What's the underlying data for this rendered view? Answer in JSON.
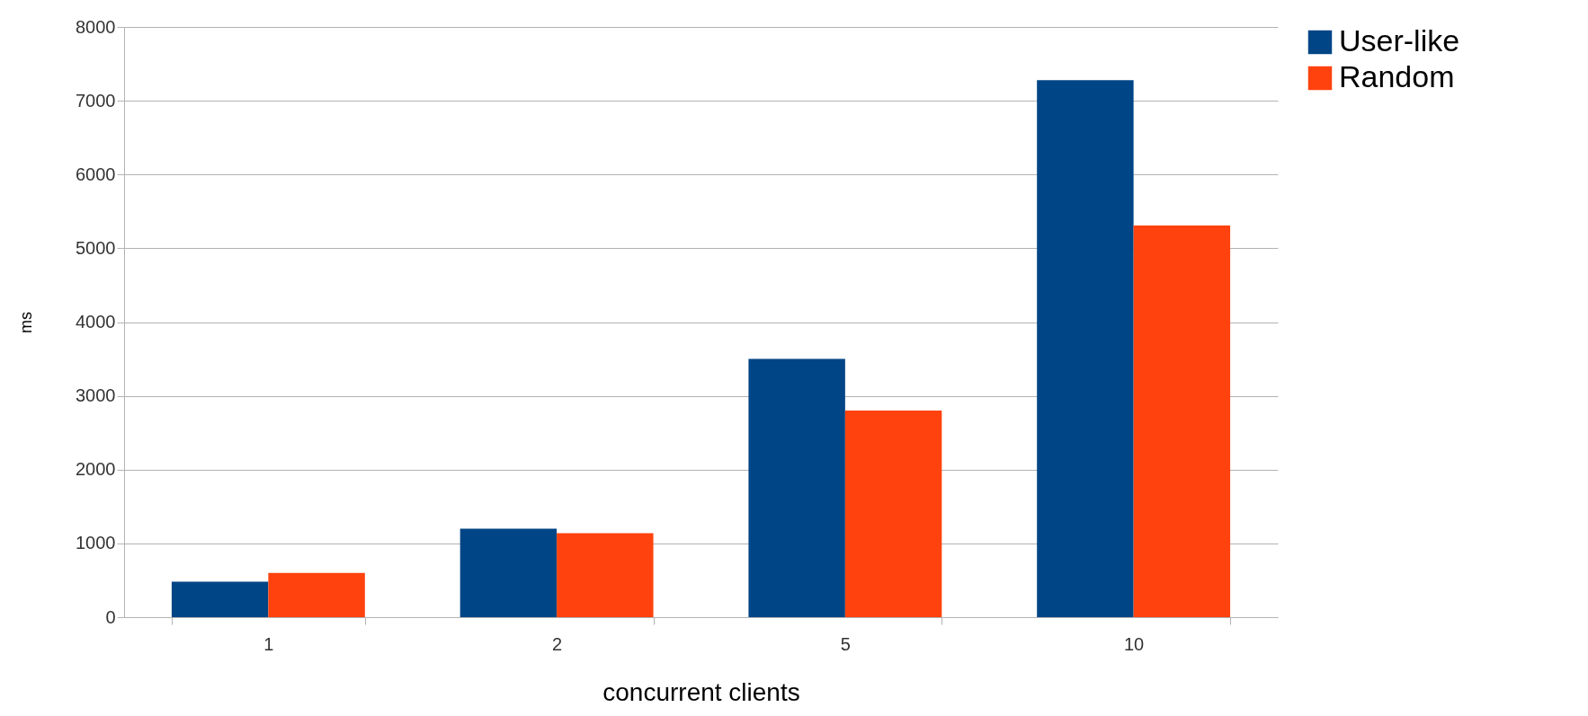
{
  "chart_data": {
    "type": "bar",
    "xlabel": "concurrent clients",
    "ylabel": "ms",
    "categories": [
      "1",
      "2",
      "5",
      "10"
    ],
    "series": [
      {
        "name": "User-like",
        "color": "#004586",
        "values": [
          480,
          1200,
          3500,
          7280
        ]
      },
      {
        "name": "Random",
        "color": "#ff420e",
        "values": [
          600,
          1140,
          2800,
          5310
        ]
      }
    ],
    "ylim": [
      0,
      8000
    ],
    "yticks": [
      0,
      1000,
      2000,
      3000,
      4000,
      5000,
      6000,
      7000,
      8000
    ],
    "grid": "y",
    "legend": "right"
  }
}
